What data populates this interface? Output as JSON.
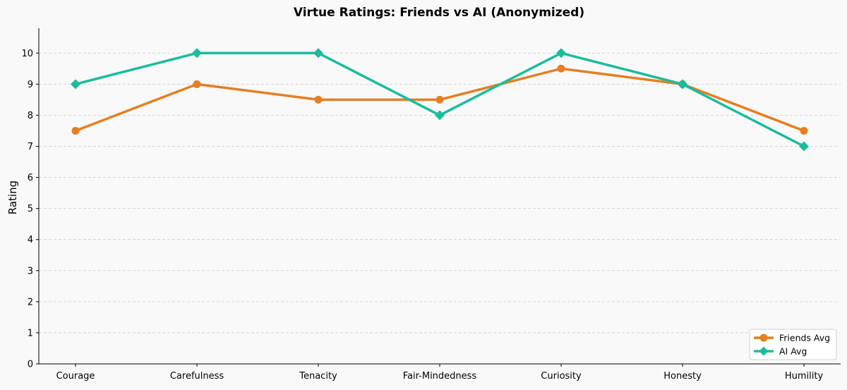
{
  "chart_data": {
    "type": "line",
    "title": "Virtue Ratings: Friends vs AI (Anonymized)",
    "xlabel": "",
    "ylabel": "Rating",
    "categories": [
      "Courage",
      "Carefulness",
      "Tenacity",
      "Fair-Mindedness",
      "Curiosity",
      "Honesty",
      "Humility"
    ],
    "ylim": [
      0,
      10.8
    ],
    "yticks": [
      0,
      1,
      2,
      3,
      4,
      5,
      6,
      7,
      8,
      9,
      10
    ],
    "grid": "horizontal-dashed",
    "legend_position": "bottom-right",
    "series": [
      {
        "name": "Friends Avg",
        "color": "#e67e22",
        "marker": "circle",
        "values": [
          7.5,
          9,
          8.5,
          8.5,
          9.5,
          9,
          7.5
        ]
      },
      {
        "name": "AI Avg",
        "color": "#1abc9c",
        "marker": "diamond",
        "values": [
          9,
          10,
          10,
          8,
          10,
          9,
          7
        ]
      }
    ]
  }
}
